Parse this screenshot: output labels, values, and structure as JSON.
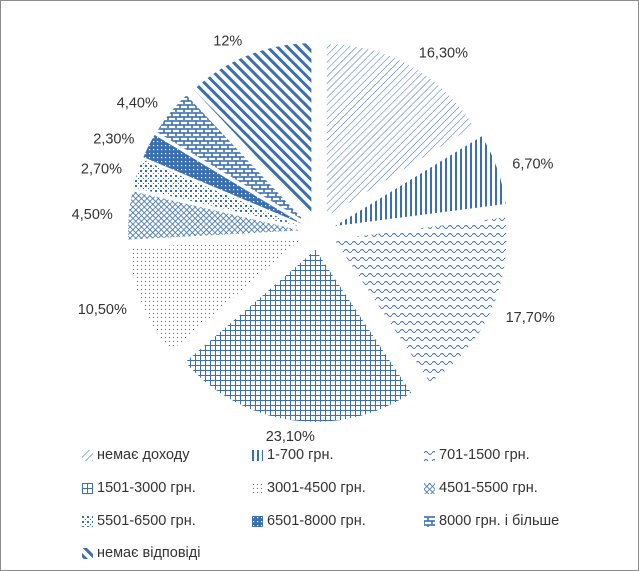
{
  "chart_data": {
    "type": "pie",
    "categories": [
      "немає доходу",
      "1-700 грн.",
      "701-1500 грн.",
      "1501-3000 грн.",
      "3001-4500 грн.",
      "4501-5500 грн.",
      "5501-6500 грн.",
      "6501-8000 грн.",
      "8000 грн. і більше",
      "немає відповіді"
    ],
    "values": [
      16.3,
      6.7,
      17.7,
      23.1,
      10.5,
      4.5,
      2.7,
      2.3,
      4.4,
      12.0
    ],
    "data_labels": [
      "16,30%",
      "6,70%",
      "17,70%",
      "23,10%",
      "10,50%",
      "4,50%",
      "2,70%",
      "2,30%",
      "4,40%",
      "12%"
    ],
    "legend_position": "bottom",
    "exploded": true,
    "color": "#3a6fb0"
  }
}
